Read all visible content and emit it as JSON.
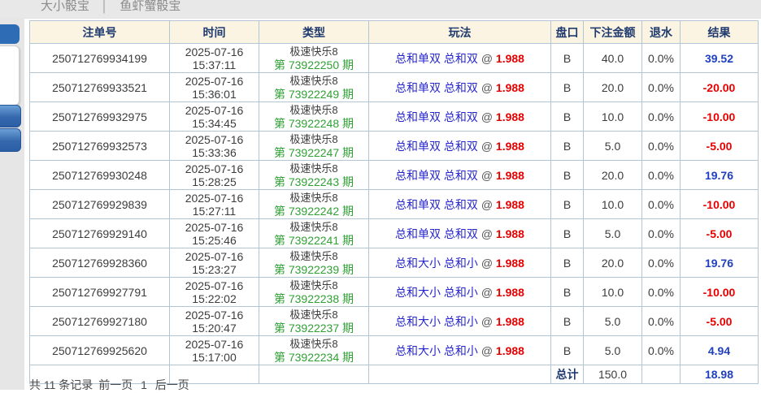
{
  "topbar": {
    "tab1": "大小骰宝",
    "separator": "│",
    "tab2": "鱼虾蟹骰宝"
  },
  "table": {
    "headers": [
      "注单号",
      "时间",
      "类型",
      "玩法",
      "盘口",
      "下注金额",
      "退水",
      "结果"
    ],
    "rows": [
      {
        "order": "250712769934199",
        "date": "2025-07-16",
        "time": "15:37:11",
        "game": "极速快乐8",
        "period": "第 73922250 期",
        "play": "总和单双 总和双",
        "at": "@",
        "odds": "1.988",
        "market": "B",
        "amount": "40.0",
        "rebate": "0.0%",
        "result": "39.52"
      },
      {
        "order": "250712769933521",
        "date": "2025-07-16",
        "time": "15:36:01",
        "game": "极速快乐8",
        "period": "第 73922249 期",
        "play": "总和单双 总和双",
        "at": "@",
        "odds": "1.988",
        "market": "B",
        "amount": "20.0",
        "rebate": "0.0%",
        "result": "-20.00"
      },
      {
        "order": "250712769932975",
        "date": "2025-07-16",
        "time": "15:34:45",
        "game": "极速快乐8",
        "period": "第 73922248 期",
        "play": "总和单双 总和双",
        "at": "@",
        "odds": "1.988",
        "market": "B",
        "amount": "10.0",
        "rebate": "0.0%",
        "result": "-10.00"
      },
      {
        "order": "250712769932573",
        "date": "2025-07-16",
        "time": "15:33:36",
        "game": "极速快乐8",
        "period": "第 73922247 期",
        "play": "总和单双 总和双",
        "at": "@",
        "odds": "1.988",
        "market": "B",
        "amount": "5.0",
        "rebate": "0.0%",
        "result": "-5.00"
      },
      {
        "order": "250712769930248",
        "date": "2025-07-16",
        "time": "15:28:25",
        "game": "极速快乐8",
        "period": "第 73922243 期",
        "play": "总和单双 总和双",
        "at": "@",
        "odds": "1.988",
        "market": "B",
        "amount": "20.0",
        "rebate": "0.0%",
        "result": "19.76"
      },
      {
        "order": "250712769929839",
        "date": "2025-07-16",
        "time": "15:27:11",
        "game": "极速快乐8",
        "period": "第 73922242 期",
        "play": "总和单双 总和双",
        "at": "@",
        "odds": "1.988",
        "market": "B",
        "amount": "10.0",
        "rebate": "0.0%",
        "result": "-10.00"
      },
      {
        "order": "250712769929140",
        "date": "2025-07-16",
        "time": "15:25:46",
        "game": "极速快乐8",
        "period": "第 73922241 期",
        "play": "总和单双 总和双",
        "at": "@",
        "odds": "1.988",
        "market": "B",
        "amount": "5.0",
        "rebate": "0.0%",
        "result": "-5.00"
      },
      {
        "order": "250712769928360",
        "date": "2025-07-16",
        "time": "15:23:27",
        "game": "极速快乐8",
        "period": "第 73922239 期",
        "play": "总和大小 总和小",
        "at": "@",
        "odds": "1.988",
        "market": "B",
        "amount": "20.0",
        "rebate": "0.0%",
        "result": "19.76"
      },
      {
        "order": "250712769927791",
        "date": "2025-07-16",
        "time": "15:22:02",
        "game": "极速快乐8",
        "period": "第 73922238 期",
        "play": "总和大小 总和小",
        "at": "@",
        "odds": "1.988",
        "market": "B",
        "amount": "10.0",
        "rebate": "0.0%",
        "result": "-10.00"
      },
      {
        "order": "250712769927180",
        "date": "2025-07-16",
        "time": "15:20:47",
        "game": "极速快乐8",
        "period": "第 73922237 期",
        "play": "总和大小 总和小",
        "at": "@",
        "odds": "1.988",
        "market": "B",
        "amount": "5.0",
        "rebate": "0.0%",
        "result": "-5.00"
      },
      {
        "order": "250712769925620",
        "date": "2025-07-16",
        "time": "15:17:00",
        "game": "极速快乐8",
        "period": "第 73922234 期",
        "play": "总和大小 总和小",
        "at": "@",
        "odds": "1.988",
        "market": "B",
        "amount": "5.0",
        "rebate": "0.0%",
        "result": "4.94"
      }
    ],
    "footer": {
      "label": "总计",
      "amount": "150.0",
      "result": "18.98"
    }
  },
  "pagination": {
    "summary": "共 11 条记录",
    "prev": "前一页",
    "page": "1",
    "next": "后一页"
  },
  "colors": {
    "win": "#1f3fc0",
    "lose": "#e60000",
    "odds": "#e60000",
    "period": "#2fa133",
    "play": "#2626cc",
    "header_bg": "#fcf4e3",
    "header_text": "#1f3a6e"
  }
}
